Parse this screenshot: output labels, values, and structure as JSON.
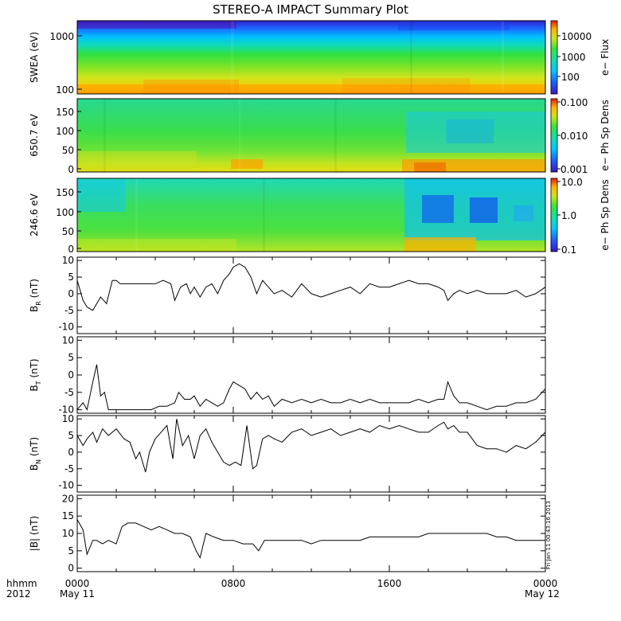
{
  "chart_data": {
    "type": "line",
    "title": "STEREO-A IMPACT Summary Plot",
    "x_axis": {
      "ticks": [
        "0000",
        "0800",
        "1600",
        "0000"
      ],
      "dates": [
        "May 11",
        "",
        "",
        "May 12"
      ],
      "left_labels": [
        "hhmm",
        "2012"
      ],
      "range_hours": [
        0,
        24
      ]
    },
    "spectrograms": [
      {
        "name": "swea",
        "ylabel": "SWEA (eV)",
        "yticks": [
          "1000",
          "100"
        ],
        "colorbar_label": "e− Flux",
        "colorbar_ticks": [
          "10000",
          "1000",
          "100"
        ]
      },
      {
        "name": "pad650",
        "ylabel": "650.7 eV",
        "yticks": [
          "150",
          "100",
          "50",
          "0"
        ],
        "colorbar_label": "e− Ph Sp Dens",
        "colorbar_ticks": [
          "0.100",
          "0.010",
          "0.001"
        ]
      },
      {
        "name": "pad246",
        "ylabel": "246.6 eV",
        "yticks": [
          "150",
          "100",
          "50",
          "0"
        ],
        "colorbar_label": "e− Ph Sp Dens",
        "colorbar_ticks": [
          "10.0",
          "1.0",
          "0.1"
        ]
      }
    ],
    "line_panels": [
      {
        "name": "br",
        "ylabel_main": "B",
        "ylabel_sub": "R",
        "ylabel_unit": "(nT)",
        "ylim": [
          -12,
          11
        ],
        "yticks": [
          "10",
          "5",
          "0",
          "-5",
          "-10"
        ],
        "ytick_values": [
          10,
          5,
          0,
          -5,
          -10
        ],
        "x": [
          0,
          0.3,
          0.5,
          0.8,
          1.0,
          1.2,
          1.5,
          1.8,
          2.0,
          2.2,
          2.5,
          3.0,
          3.5,
          4.0,
          4.4,
          4.8,
          5.0,
          5.3,
          5.6,
          5.8,
          6.0,
          6.3,
          6.6,
          6.9,
          7.2,
          7.5,
          7.8,
          8.0,
          8.3,
          8.6,
          8.9,
          9.2,
          9.5,
          9.8,
          10.1,
          10.5,
          11.0,
          11.5,
          12.0,
          12.5,
          13.0,
          13.5,
          14.0,
          14.5,
          15.0,
          15.5,
          16.0,
          16.5,
          17.0,
          17.5,
          18.0,
          18.5,
          18.8,
          19.0,
          19.3,
          19.6,
          20.0,
          20.5,
          21.0,
          21.5,
          22.0,
          22.5,
          23.0,
          23.5,
          24.0
        ],
        "y": [
          4,
          -2,
          -4,
          -5,
          -3,
          -1,
          -3,
          4,
          4,
          3,
          3,
          3,
          3,
          3,
          4,
          3,
          -2,
          2,
          3,
          0,
          2,
          -1,
          2,
          3,
          0,
          4,
          6,
          8,
          9,
          8,
          5,
          0,
          4,
          2,
          0,
          1,
          -1,
          3,
          0,
          -1,
          0,
          1,
          2,
          0,
          3,
          2,
          2,
          3,
          4,
          3,
          3,
          2,
          1,
          -2,
          0,
          1,
          0,
          1,
          0,
          0,
          0,
          1,
          -1,
          0,
          2
        ]
      },
      {
        "name": "bt",
        "ylabel_main": "B",
        "ylabel_sub": "T",
        "ylabel_unit": "(nT)",
        "ylim": [
          -11,
          11
        ],
        "yticks": [
          "10",
          "5",
          "0",
          "-5",
          "-10"
        ],
        "ytick_values": [
          10,
          5,
          0,
          -5,
          -10
        ],
        "x": [
          0,
          0.3,
          0.5,
          0.8,
          1.0,
          1.2,
          1.4,
          1.6,
          1.8,
          2.0,
          2.5,
          3.0,
          3.4,
          3.8,
          4.2,
          4.6,
          5.0,
          5.2,
          5.5,
          5.8,
          6.0,
          6.3,
          6.6,
          6.9,
          7.2,
          7.5,
          7.8,
          8.0,
          8.3,
          8.6,
          8.9,
          9.2,
          9.5,
          9.8,
          10.1,
          10.5,
          11.0,
          11.5,
          12.0,
          12.5,
          13.0,
          13.5,
          14.0,
          14.5,
          15.0,
          15.5,
          16.0,
          16.5,
          17.0,
          17.5,
          18.0,
          18.5,
          18.8,
          19.0,
          19.3,
          19.6,
          20.0,
          20.5,
          21.0,
          21.5,
          22.0,
          22.5,
          23.0,
          23.5,
          24.0
        ],
        "y": [
          -10,
          -8,
          -10,
          -2,
          3,
          -6,
          -5,
          -10,
          -10,
          -10,
          -10,
          -10,
          -10,
          -10,
          -9,
          -9,
          -8,
          -5,
          -7,
          -7,
          -6,
          -9,
          -7,
          -8,
          -9,
          -8,
          -4,
          -2,
          -3,
          -4,
          -7,
          -5,
          -7,
          -6,
          -9,
          -7,
          -8,
          -7,
          -8,
          -7,
          -8,
          -8,
          -7,
          -8,
          -7,
          -8,
          -8,
          -8,
          -8,
          -7,
          -8,
          -7,
          -7,
          -2,
          -6,
          -8,
          -8,
          -9,
          -10,
          -9,
          -9,
          -8,
          -8,
          -7,
          -4
        ]
      },
      {
        "name": "bn",
        "ylabel_main": "B",
        "ylabel_sub": "N",
        "ylabel_unit": "(nT)",
        "ylim": [
          -12,
          11
        ],
        "yticks": [
          "10",
          "5",
          "0",
          "-5",
          "-10"
        ],
        "ytick_values": [
          10,
          5,
          0,
          -5,
          -10
        ],
        "x": [
          0,
          0.3,
          0.5,
          0.8,
          1.0,
          1.3,
          1.6,
          2.0,
          2.4,
          2.7,
          3.0,
          3.2,
          3.5,
          3.7,
          4.0,
          4.3,
          4.6,
          4.9,
          5.1,
          5.4,
          5.7,
          6.0,
          6.3,
          6.6,
          6.9,
          7.2,
          7.5,
          7.8,
          8.1,
          8.4,
          8.7,
          9.0,
          9.2,
          9.5,
          9.8,
          10.1,
          10.5,
          11.0,
          11.5,
          12.0,
          12.5,
          13.0,
          13.5,
          14.0,
          14.5,
          15.0,
          15.5,
          16.0,
          16.5,
          17.0,
          17.5,
          18.0,
          18.5,
          18.8,
          19.0,
          19.3,
          19.6,
          20.0,
          20.5,
          21.0,
          21.5,
          22.0,
          22.5,
          23.0,
          23.5,
          24.0
        ],
        "y": [
          5,
          2,
          4,
          6,
          3,
          7,
          5,
          7,
          4,
          3,
          -2,
          0,
          -6,
          0,
          4,
          6,
          8,
          -2,
          10,
          2,
          5,
          -2,
          5,
          7,
          3,
          0,
          -3,
          -4,
          -3,
          -4,
          8,
          -5,
          -4,
          4,
          5,
          4,
          3,
          6,
          7,
          5,
          6,
          7,
          5,
          6,
          7,
          6,
          8,
          7,
          8,
          7,
          6,
          6,
          8,
          9,
          7,
          8,
          6,
          6,
          2,
          1,
          1,
          0,
          2,
          1,
          3,
          6
        ]
      },
      {
        "name": "bmag",
        "ylabel_main": "|B|",
        "ylabel_sub": "",
        "ylabel_unit": "(nT)",
        "ylim": [
          -1,
          21
        ],
        "yticks": [
          "20",
          "15",
          "10",
          "5",
          "0"
        ],
        "ytick_values": [
          20,
          15,
          10,
          5,
          0
        ],
        "x": [
          0,
          0.3,
          0.5,
          0.8,
          1.0,
          1.3,
          1.6,
          2.0,
          2.3,
          2.6,
          3.0,
          3.4,
          3.8,
          4.2,
          4.6,
          5.0,
          5.4,
          5.8,
          6.1,
          6.3,
          6.6,
          7.0,
          7.5,
          8.0,
          8.5,
          9.0,
          9.3,
          9.6,
          10.0,
          10.5,
          11.0,
          11.5,
          12.0,
          12.5,
          13.0,
          13.5,
          14.0,
          14.5,
          15.0,
          15.5,
          16.0,
          16.5,
          17.0,
          17.5,
          18.0,
          18.5,
          19.0,
          19.5,
          20.0,
          20.5,
          21.0,
          21.5,
          22.0,
          22.5,
          23.0,
          23.5,
          24.0
        ],
        "y": [
          14,
          11,
          4,
          8,
          8,
          7,
          8,
          7,
          12,
          13,
          13,
          12,
          11,
          12,
          11,
          10,
          10,
          9,
          5,
          3,
          10,
          9,
          8,
          8,
          7,
          7,
          5,
          8,
          8,
          8,
          8,
          8,
          7,
          8,
          8,
          8,
          8,
          8,
          9,
          9,
          9,
          9,
          9,
          9,
          10,
          10,
          10,
          10,
          10,
          10,
          10,
          9,
          9,
          8,
          8,
          8,
          8
        ]
      }
    ],
    "side_text": "Fri Jan 11 00:43:16 2013"
  }
}
